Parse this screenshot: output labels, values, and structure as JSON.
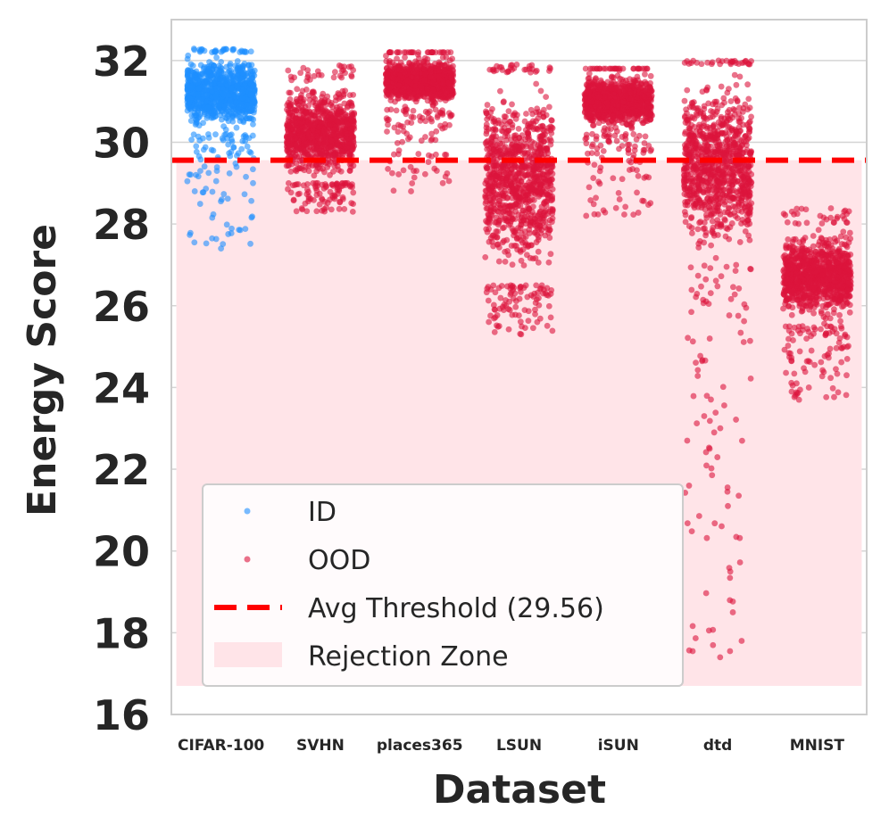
{
  "chart_data": {
    "type": "scatter",
    "subtype": "strip",
    "title": "",
    "xlabel": "Dataset",
    "ylabel": "Energy Score",
    "ylim": [
      16,
      33
    ],
    "yticks": [
      16,
      18,
      20,
      22,
      24,
      26,
      28,
      30,
      32
    ],
    "grid": true,
    "categories": [
      "CIFAR-100",
      "SVHN",
      "places365",
      "LSUN",
      "iSUN",
      "dtd",
      "MNIST"
    ],
    "colors": {
      "ID": "#1e90ff",
      "OOD": "#dc143c",
      "threshold": "#ff0000",
      "rejection": "#ffe4e8"
    },
    "threshold": {
      "value": 29.56,
      "label": "Avg Threshold (29.56)"
    },
    "rejection_zone": {
      "label": "Rejection Zone",
      "y_from": 16.7,
      "y_to": 29.56
    },
    "series": [
      {
        "name": "ID",
        "dataset": "CIFAR-100",
        "core_range": [
          30.2,
          32.2
        ],
        "min": 27.4,
        "max": 32.3,
        "outliers": [
          27.4,
          27.55,
          28.6,
          28.8,
          29.0,
          29.2
        ]
      },
      {
        "name": "OOD",
        "dataset": "SVHN",
        "core_range": [
          29.0,
          31.5
        ],
        "min": 28.3,
        "max": 31.9,
        "outliers": [
          28.3,
          28.5
        ]
      },
      {
        "name": "OOD",
        "dataset": "places365",
        "core_range": [
          30.8,
          32.2
        ],
        "min": 28.8,
        "max": 32.2,
        "outliers": [
          28.8,
          29.0,
          29.3
        ]
      },
      {
        "name": "OOD",
        "dataset": "LSUN",
        "core_range": [
          26.5,
          31.7
        ],
        "min": 25.3,
        "max": 31.9,
        "outliers": [
          25.3,
          25.6,
          25.9
        ]
      },
      {
        "name": "OOD",
        "dataset": "iSUN",
        "core_range": [
          30.2,
          31.8
        ],
        "min": 28.2,
        "max": 31.8,
        "outliers": [
          28.2,
          28.9,
          29.1
        ]
      },
      {
        "name": "OOD",
        "dataset": "dtd",
        "core_range": [
          27.0,
          31.9
        ],
        "min": 17.4,
        "max": 32.0,
        "outliers": [
          17.4,
          17.8,
          17.55,
          18.5,
          21.1,
          21.45,
          22.7,
          22.9,
          23.3
        ]
      },
      {
        "name": "OOD",
        "dataset": "MNIST",
        "core_range": [
          25.5,
          28.0
        ],
        "min": 23.7,
        "max": 28.4,
        "outliers": [
          23.7,
          23.9,
          24.1,
          24.3
        ]
      }
    ],
    "legend": {
      "position": "lower-left",
      "entries": [
        {
          "label": "ID",
          "kind": "marker",
          "color": "#1e90ff"
        },
        {
          "label": "OOD",
          "kind": "marker",
          "color": "#dc143c"
        },
        {
          "label": "Avg Threshold (29.56)",
          "kind": "dashed-line",
          "color": "#ff0000"
        },
        {
          "label": "Rejection Zone",
          "kind": "patch",
          "color": "#ffe4e8"
        }
      ]
    }
  }
}
